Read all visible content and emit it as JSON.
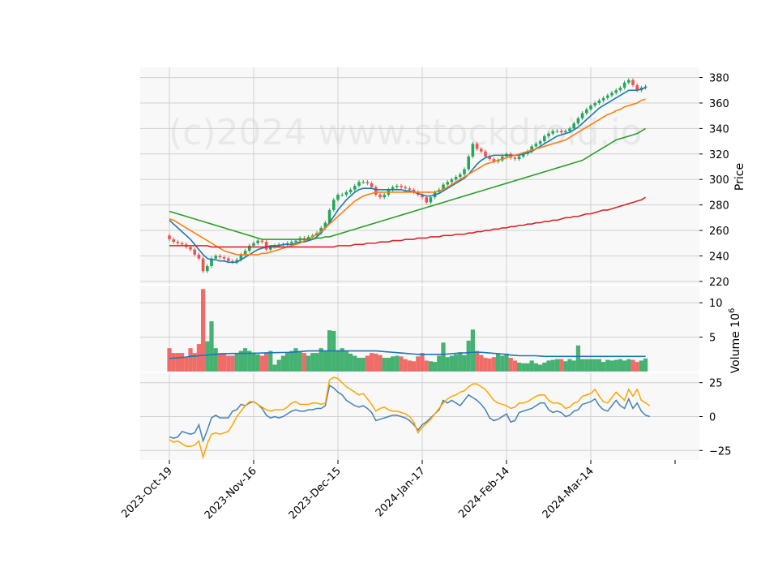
{
  "chart_data": {
    "type": "candlestick",
    "watermark": "(c)2024 www.stockdroid.io",
    "colors": {
      "up": "#26a65b",
      "down": "#ef5350",
      "ma_fast": "#1f77b4",
      "ma_mid": "#ff7f0e",
      "ma_slow": "#2ca02c",
      "ma_long": "#d62728",
      "volume_ma": "#1f77b4",
      "macd": "#4682b4",
      "signal": "#ffa500",
      "panel_bg": "#f8f8f8",
      "grid": "#d0d0d0"
    },
    "x_ticks": [
      "2023-Oct-19",
      "2023-Nov-16",
      "2023-Dec-15",
      "2024-Jan-17",
      "2024-Feb-14",
      "2024-Mar-14"
    ],
    "x_tick_index": [
      0,
      20,
      40,
      60,
      80,
      100
    ],
    "price_panel": {
      "ylabel": "Price",
      "ylim": [
        218,
        388
      ],
      "yticks": [
        220,
        240,
        260,
        280,
        300,
        320,
        340,
        360,
        380
      ],
      "close": [
        253,
        251,
        250,
        249,
        247,
        245,
        241,
        238,
        228,
        232,
        238,
        240,
        239,
        238,
        236,
        235,
        237,
        241,
        244,
        248,
        250,
        252,
        251,
        245,
        247,
        248,
        249,
        249,
        250,
        251,
        252,
        254,
        253,
        255,
        256,
        258,
        262,
        266,
        276,
        284,
        288,
        288,
        290,
        292,
        295,
        298,
        298,
        297,
        294,
        288,
        286,
        288,
        292,
        294,
        295,
        294,
        293,
        292,
        290,
        288,
        286,
        282,
        286,
        290,
        292,
        296,
        298,
        300,
        302,
        304,
        308,
        318,
        328,
        324,
        322,
        318,
        316,
        314,
        315,
        318,
        320,
        317,
        316,
        318,
        320,
        322,
        326,
        328,
        330,
        334,
        336,
        338,
        338,
        337,
        338,
        340,
        344,
        348,
        352,
        355,
        358,
        360,
        362,
        364,
        366,
        368,
        370,
        372,
        376,
        378,
        374,
        370,
        372,
        373
      ],
      "moving_averages": [
        {
          "period": "fast",
          "values": [
            268,
            265,
            262,
            259,
            256,
            253,
            249,
            245,
            241,
            238,
            237,
            237,
            236,
            236,
            235,
            235,
            235,
            237,
            239,
            241,
            243,
            245,
            246,
            247,
            248,
            248,
            248,
            249,
            249,
            249,
            250,
            251,
            251,
            252,
            253,
            255,
            258,
            262,
            266,
            271,
            276,
            280,
            284,
            287,
            290,
            292,
            293,
            293,
            293,
            292,
            292,
            292,
            292,
            292,
            292,
            292,
            291,
            291,
            290,
            289,
            288,
            287,
            287,
            288,
            289,
            291,
            293,
            295,
            297,
            299,
            301,
            304,
            308,
            312,
            315,
            317,
            318,
            319,
            319,
            319,
            319,
            319,
            319,
            319,
            320,
            321,
            322,
            324,
            326,
            328,
            330,
            332,
            334,
            335,
            336,
            337,
            339,
            341,
            344,
            347,
            350,
            353,
            356,
            358,
            360,
            362,
            364,
            366,
            368,
            370,
            370,
            370,
            371,
            372
          ]
        },
        {
          "period": "mid",
          "values": [
            269,
            268,
            266,
            264,
            262,
            260,
            258,
            256,
            254,
            252,
            250,
            248,
            246,
            244,
            243,
            242,
            241,
            241,
            241,
            241,
            241,
            241,
            242,
            242,
            243,
            244,
            245,
            246,
            247,
            248,
            249,
            250,
            252,
            253,
            255,
            257,
            259,
            262,
            265,
            268,
            271,
            274,
            277,
            280,
            283,
            285,
            287,
            288,
            289,
            290,
            290,
            290,
            290,
            290,
            290,
            290,
            290,
            290,
            290,
            290,
            290,
            290,
            290,
            290,
            291,
            292,
            294,
            296,
            298,
            300,
            302,
            304,
            306,
            308,
            310,
            312,
            313,
            314,
            315,
            316,
            317,
            318,
            319,
            320,
            321,
            322,
            323,
            324,
            325,
            326,
            327,
            328,
            329,
            330,
            331,
            333,
            335,
            337,
            339,
            341,
            343,
            345,
            347,
            349,
            351,
            352,
            354,
            355,
            357,
            358,
            359,
            360,
            362,
            363
          ]
        },
        {
          "period": "slow",
          "values": [
            275,
            274,
            273,
            272,
            271,
            270,
            269,
            268,
            267,
            266,
            265,
            264,
            263,
            262,
            261,
            260,
            259,
            258,
            257,
            256,
            255,
            254,
            253,
            253,
            253,
            253,
            253,
            253,
            253,
            253,
            253,
            253,
            253,
            253,
            253,
            254,
            254,
            255,
            255,
            256,
            257,
            258,
            259,
            260,
            261,
            262,
            263,
            264,
            265,
            266,
            267,
            268,
            269,
            270,
            271,
            272,
            273,
            274,
            275,
            276,
            277,
            278,
            279,
            280,
            281,
            282,
            283,
            284,
            285,
            286,
            287,
            288,
            289,
            290,
            291,
            292,
            293,
            294,
            295,
            296,
            297,
            298,
            299,
            300,
            301,
            302,
            303,
            304,
            305,
            306,
            307,
            308,
            309,
            310,
            311,
            312,
            313,
            314,
            315,
            317,
            319,
            321,
            323,
            325,
            327,
            329,
            331,
            332,
            333,
            334,
            335,
            336,
            338,
            340
          ]
        },
        {
          "period": "long",
          "values": [
            248,
            248,
            248,
            248,
            248,
            248,
            248,
            248,
            248,
            248,
            247,
            247,
            247,
            247,
            247,
            247,
            247,
            247,
            247,
            247,
            247,
            247,
            247,
            247,
            247,
            247,
            247,
            247,
            247,
            247,
            247,
            247,
            247,
            247,
            247,
            247,
            247,
            247,
            247,
            247,
            248,
            248,
            248,
            248,
            249,
            249,
            249,
            250,
            250,
            250,
            251,
            251,
            251,
            252,
            252,
            252,
            253,
            253,
            253,
            254,
            254,
            254,
            255,
            255,
            255,
            256,
            256,
            256,
            257,
            257,
            257,
            258,
            258,
            259,
            259,
            260,
            260,
            261,
            261,
            262,
            262,
            263,
            263,
            264,
            264,
            265,
            265,
            266,
            266,
            267,
            267,
            268,
            268,
            269,
            270,
            270,
            271,
            271,
            272,
            273,
            273,
            274,
            275,
            276,
            276,
            277,
            278,
            279,
            280,
            281,
            282,
            283,
            284,
            286
          ]
        }
      ]
    },
    "volume_panel": {
      "ylabel": "Volume",
      "scale_label": "10",
      "scale_exponent": "6",
      "ylim": [
        0,
        12.5
      ],
      "yticks": [
        5,
        10
      ],
      "values": [
        3.4,
        2.7,
        2.7,
        2.7,
        2.0,
        3.4,
        2.7,
        4.0,
        12.0,
        4.4,
        7.3,
        3.4,
        2.7,
        2.7,
        2.3,
        2.3,
        2.7,
        3.0,
        3.4,
        3.0,
        2.7,
        2.5,
        2.3,
        2.7,
        3.0,
        1.0,
        1.7,
        2.3,
        2.7,
        3.0,
        3.4,
        3.0,
        2.7,
        2.3,
        2.7,
        2.7,
        3.4,
        3.0,
        6.0,
        5.9,
        3.1,
        3.4,
        3.0,
        2.6,
        2.3,
        2.0,
        2.0,
        2.3,
        2.7,
        2.6,
        2.4,
        2.0,
        2.0,
        2.2,
        2.3,
        2.2,
        1.8,
        1.6,
        1.5,
        2.2,
        2.7,
        1.6,
        1.5,
        1.4,
        2.3,
        4.2,
        2.1,
        2.3,
        2.5,
        2.8,
        2.4,
        4.5,
        6.1,
        3.0,
        2.4,
        2.0,
        1.9,
        2.1,
        2.6,
        2.3,
        2.6,
        2.0,
        1.6,
        1.3,
        1.2,
        1.2,
        1.6,
        1.2,
        1.0,
        1.3,
        1.6,
        1.7,
        1.8,
        1.8,
        1.5,
        1.8,
        1.6,
        3.8,
        1.8,
        1.8,
        1.8,
        1.8,
        1.8,
        1.4,
        1.7,
        1.6,
        1.7,
        1.8,
        1.6,
        1.8,
        1.7,
        1.4,
        1.6,
        1.9
      ],
      "moving_average": [
        1.9,
        1.95,
        2.0,
        2.05,
        2.1,
        2.2,
        2.25,
        2.3,
        2.35,
        2.4,
        2.45,
        2.5,
        2.55,
        2.6,
        2.62,
        2.63,
        2.64,
        2.65,
        2.65,
        2.66,
        2.67,
        2.68,
        2.7,
        2.72,
        2.74,
        2.75,
        2.76,
        2.77,
        2.78,
        2.8,
        2.85,
        2.9,
        2.95,
        3.0,
        3.0,
        3.0,
        3.0,
        3.0,
        3.0,
        3.0,
        3.0,
        3.0,
        3.0,
        3.0,
        3.0,
        3.0,
        3.0,
        3.0,
        3.0,
        3.0,
        2.95,
        2.9,
        2.85,
        2.8,
        2.75,
        2.7,
        2.65,
        2.6,
        2.55,
        2.5,
        2.5,
        2.5,
        2.5,
        2.5,
        2.5,
        2.5,
        2.55,
        2.6,
        2.65,
        2.7,
        2.7,
        2.75,
        2.8,
        2.8,
        2.8,
        2.75,
        2.7,
        2.65,
        2.6,
        2.55,
        2.5,
        2.4,
        2.35,
        2.3,
        2.3,
        2.3,
        2.3,
        2.3,
        2.25,
        2.2,
        2.2,
        2.2,
        2.2,
        2.2,
        2.2,
        2.2,
        2.2,
        2.2,
        2.2,
        2.2,
        2.2,
        2.2,
        2.2,
        2.2,
        2.2,
        2.2,
        2.2,
        2.2,
        2.2,
        2.2,
        2.2,
        2.2,
        2.2,
        2.2
      ]
    },
    "macd_panel": {
      "ylim": [
        -32,
        32
      ],
      "yticks": [
        -25,
        0,
        25
      ],
      "macd": [
        -15,
        -16,
        -15,
        -11,
        -12,
        -13,
        -12,
        -6,
        -18,
        -10,
        -1,
        1,
        -1,
        -1,
        -1,
        4,
        5,
        9,
        8,
        10,
        11,
        9,
        6,
        1,
        -1,
        0,
        -1,
        0,
        2,
        4,
        5,
        4,
        4,
        5,
        5,
        6,
        6,
        8,
        23,
        21,
        18,
        16,
        12,
        10,
        8,
        7,
        8,
        6,
        3,
        -3,
        -2,
        -1,
        0,
        1,
        1,
        0,
        -1,
        -3,
        -6,
        -10,
        -6,
        -4,
        -1,
        2,
        5,
        12,
        10,
        12,
        10,
        8,
        12,
        16,
        14,
        12,
        9,
        5,
        -1,
        -3,
        -2,
        0,
        2,
        -4,
        -3,
        3,
        4,
        5,
        6,
        8,
        10,
        10,
        5,
        3,
        4,
        3,
        0,
        1,
        4,
        5,
        9,
        10,
        11,
        13,
        8,
        5,
        4,
        8,
        12,
        8,
        6,
        13,
        6,
        10,
        4,
        1,
        0
      ],
      "signal": [
        -17,
        -19,
        -18,
        -20,
        -22,
        -22,
        -21,
        -18,
        -30,
        -20,
        -13,
        -12,
        -13,
        -12,
        -11,
        -6,
        0,
        4,
        8,
        11,
        11,
        9,
        7,
        5,
        4,
        5,
        5,
        5,
        7,
        10,
        11,
        9,
        9,
        9,
        10,
        10,
        9,
        10,
        27,
        29,
        28,
        25,
        22,
        20,
        18,
        16,
        17,
        13,
        9,
        4,
        6,
        7,
        5,
        4,
        4,
        3,
        2,
        0,
        -4,
        -12,
        -8,
        -5,
        -2,
        2,
        6,
        10,
        13,
        15,
        16,
        18,
        19,
        22,
        24,
        24,
        22,
        20,
        16,
        12,
        10,
        9,
        8,
        6,
        7,
        10,
        10,
        11,
        13,
        15,
        16,
        16,
        12,
        10,
        10,
        9,
        6,
        7,
        10,
        11,
        15,
        16,
        17,
        20,
        15,
        11,
        10,
        14,
        18,
        15,
        12,
        20,
        15,
        20,
        12,
        10,
        8
      ]
    }
  }
}
